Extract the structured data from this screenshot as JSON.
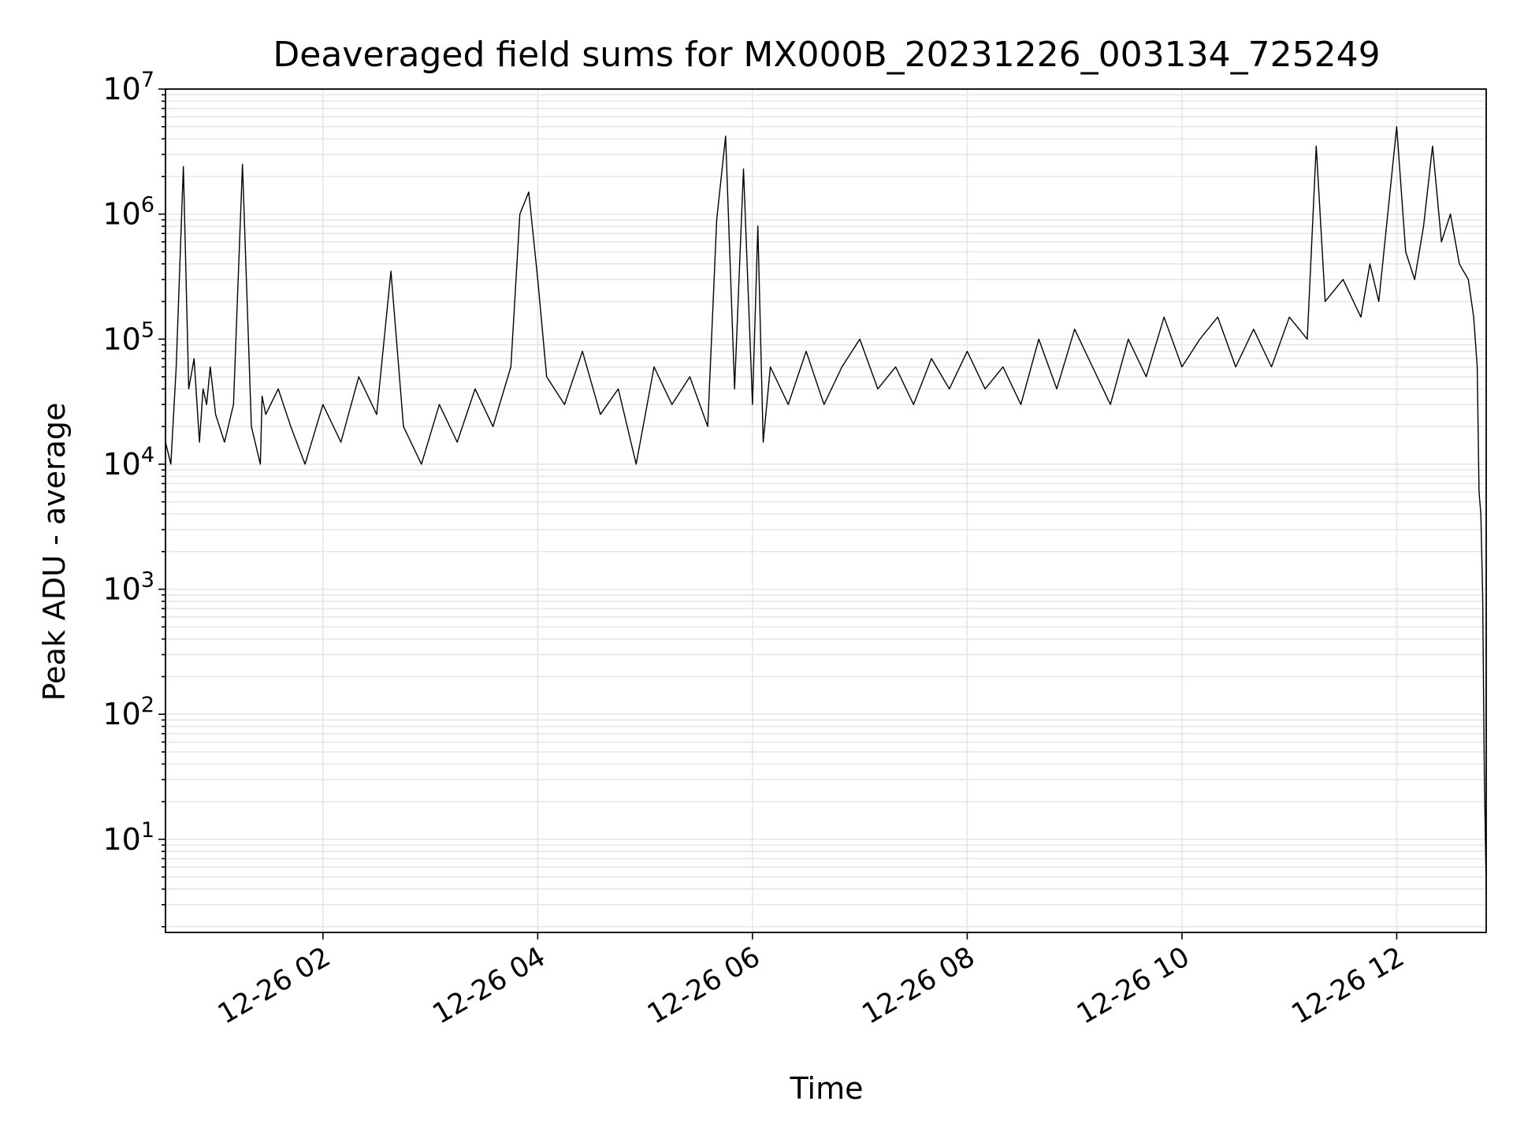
{
  "chart_data": {
    "type": "line",
    "title": "Deaveraged field sums for MX000B_20231226_003134_725249",
    "xlabel": "Time",
    "ylabel": "Peak ADU - average",
    "yscale": "log",
    "ylim": [
      1.8,
      10000000
    ],
    "xlim": [
      "2023-12-26T00:32",
      "2023-12-26T12:50"
    ],
    "grid": true,
    "grid_minor": true,
    "legend": "none",
    "colors": {
      "line": "#000000",
      "grid": "#e6e6e6",
      "axes": "#000000",
      "background": "#ffffff"
    },
    "x_ticks": [
      {
        "t": "2023-12-26T02:00",
        "label": "12-26 02"
      },
      {
        "t": "2023-12-26T04:00",
        "label": "12-26 04"
      },
      {
        "t": "2023-12-26T06:00",
        "label": "12-26 06"
      },
      {
        "t": "2023-12-26T08:00",
        "label": "12-26 08"
      },
      {
        "t": "2023-12-26T10:00",
        "label": "12-26 10"
      },
      {
        "t": "2023-12-26T12:00",
        "label": "12-26 12"
      }
    ],
    "y_ticks": [
      {
        "v": 10,
        "base": "10",
        "exp": "1"
      },
      {
        "v": 100,
        "base": "10",
        "exp": "2"
      },
      {
        "v": 1000,
        "base": "10",
        "exp": "3"
      },
      {
        "v": 10000,
        "base": "10",
        "exp": "4"
      },
      {
        "v": 100000,
        "base": "10",
        "exp": "5"
      },
      {
        "v": 1000000,
        "base": "10",
        "exp": "6"
      },
      {
        "v": 10000000,
        "base": "10",
        "exp": "7"
      }
    ],
    "series": [
      {
        "x": [
          "2023-12-26T00:32",
          "2023-12-26T00:35",
          "2023-12-26T00:38",
          "2023-12-26T00:42",
          "2023-12-26T00:45",
          "2023-12-26T00:48",
          "2023-12-26T00:51",
          "2023-12-26T00:53",
          "2023-12-26T00:55",
          "2023-12-26T00:57",
          "2023-12-26T01:00",
          "2023-12-26T01:05",
          "2023-12-26T01:10",
          "2023-12-26T01:15",
          "2023-12-26T01:20",
          "2023-12-26T01:25",
          "2023-12-26T01:26",
          "2023-12-26T01:28",
          "2023-12-26T01:35",
          "2023-12-26T01:42",
          "2023-12-26T01:50",
          "2023-12-26T02:00",
          "2023-12-26T02:10",
          "2023-12-26T02:20",
          "2023-12-26T02:30",
          "2023-12-26T02:38",
          "2023-12-26T02:45",
          "2023-12-26T02:55",
          "2023-12-26T03:05",
          "2023-12-26T03:15",
          "2023-12-26T03:25",
          "2023-12-26T03:35",
          "2023-12-26T03:45",
          "2023-12-26T03:50",
          "2023-12-26T03:55",
          "2023-12-26T04:00",
          "2023-12-26T04:05",
          "2023-12-26T04:15",
          "2023-12-26T04:25",
          "2023-12-26T04:35",
          "2023-12-26T04:45",
          "2023-12-26T04:55",
          "2023-12-26T05:05",
          "2023-12-26T05:15",
          "2023-12-26T05:25",
          "2023-12-26T05:35",
          "2023-12-26T05:40",
          "2023-12-26T05:45",
          "2023-12-26T05:50",
          "2023-12-26T05:55",
          "2023-12-26T06:00",
          "2023-12-26T06:03",
          "2023-12-26T06:06",
          "2023-12-26T06:10",
          "2023-12-26T06:20",
          "2023-12-26T06:30",
          "2023-12-26T06:40",
          "2023-12-26T06:50",
          "2023-12-26T07:00",
          "2023-12-26T07:10",
          "2023-12-26T07:20",
          "2023-12-26T07:30",
          "2023-12-26T07:40",
          "2023-12-26T07:50",
          "2023-12-26T08:00",
          "2023-12-26T08:10",
          "2023-12-26T08:20",
          "2023-12-26T08:30",
          "2023-12-26T08:40",
          "2023-12-26T08:50",
          "2023-12-26T09:00",
          "2023-12-26T09:10",
          "2023-12-26T09:20",
          "2023-12-26T09:30",
          "2023-12-26T09:40",
          "2023-12-26T09:50",
          "2023-12-26T10:00",
          "2023-12-26T10:10",
          "2023-12-26T10:20",
          "2023-12-26T10:30",
          "2023-12-26T10:40",
          "2023-12-26T10:50",
          "2023-12-26T11:00",
          "2023-12-26T11:10",
          "2023-12-26T11:15",
          "2023-12-26T11:20",
          "2023-12-26T11:30",
          "2023-12-26T11:40",
          "2023-12-26T11:45",
          "2023-12-26T11:50",
          "2023-12-26T12:00",
          "2023-12-26T12:05",
          "2023-12-26T12:10",
          "2023-12-26T12:15",
          "2023-12-26T12:20",
          "2023-12-26T12:25",
          "2023-12-26T12:30",
          "2023-12-26T12:35",
          "2023-12-26T12:40",
          "2023-12-26T12:43",
          "2023-12-26T12:45",
          "2023-12-26T12:46",
          "2023-12-26T12:47",
          "2023-12-26T12:48",
          "2023-12-26T12:49",
          "2023-12-26T12:50"
        ],
        "y": [
          15000,
          10000,
          60000,
          2400000,
          40000,
          70000,
          15000,
          40000,
          30000,
          60000,
          25000,
          15000,
          30000,
          2500000,
          20000,
          10000,
          35000,
          25000,
          40000,
          20000,
          10000,
          30000,
          15000,
          50000,
          25000,
          350000,
          20000,
          10000,
          30000,
          15000,
          40000,
          20000,
          60000,
          1000000,
          1500000,
          300000,
          50000,
          30000,
          80000,
          25000,
          40000,
          10000,
          60000,
          30000,
          50000,
          20000,
          900000,
          4200000,
          40000,
          2300000,
          30000,
          800000,
          15000,
          60000,
          30000,
          80000,
          30000,
          60000,
          100000,
          40000,
          60000,
          30000,
          70000,
          40000,
          80000,
          40000,
          60000,
          30000,
          100000,
          40000,
          120000,
          60000,
          30000,
          100000,
          50000,
          150000,
          60000,
          100000,
          150000,
          60000,
          120000,
          60000,
          150000,
          100000,
          3500000,
          200000,
          300000,
          150000,
          400000,
          200000,
          5000000,
          500000,
          300000,
          800000,
          3500000,
          600000,
          1000000,
          400000,
          300000,
          150000,
          60000,
          6000,
          4000,
          900,
          30,
          4
        ]
      }
    ]
  }
}
